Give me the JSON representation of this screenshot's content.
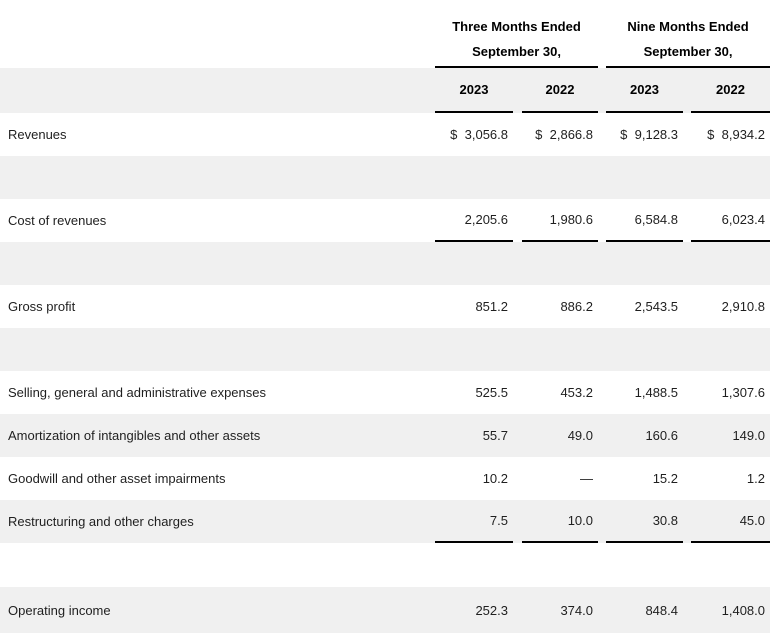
{
  "colors": {
    "stripe": "#f0f0f0",
    "row-white": "#ffffff",
    "rule": "#000000",
    "text": "#1f1f1f",
    "heading": "#000000"
  },
  "table": {
    "col_groups": [
      {
        "line1": "Three Months Ended",
        "line2": "September 30,"
      },
      {
        "line1": "Nine Months Ended",
        "line2": "September 30,"
      }
    ],
    "year_headers": [
      "2023",
      "2022",
      "2023",
      "2022"
    ],
    "rows": [
      {
        "label": "Revenues",
        "values": [
          "$  3,056.8",
          "$  2,866.8",
          "$  9,128.3",
          "$  8,934.2"
        ]
      },
      {
        "label": "Cost of revenues",
        "values": [
          "2,205.6",
          "1,980.6",
          "6,584.8",
          "6,023.4"
        ]
      },
      {
        "label": "Gross profit",
        "values": [
          "851.2",
          "886.2",
          "2,543.5",
          "2,910.8"
        ]
      },
      {
        "label": "Selling, general and administrative expenses",
        "values": [
          "525.5",
          "453.2",
          "1,488.5",
          "1,307.6"
        ]
      },
      {
        "label": "Amortization of intangibles and other assets",
        "values": [
          "55.7",
          "49.0",
          "160.6",
          "149.0"
        ]
      },
      {
        "label": "Goodwill and other asset impairments",
        "values": [
          "10.2",
          "—",
          "15.2",
          "1.2"
        ]
      },
      {
        "label": "Restructuring and other charges",
        "values": [
          "7.5",
          "10.0",
          "30.8",
          "45.0"
        ]
      },
      {
        "label": "Operating income",
        "values": [
          "252.3",
          "374.0",
          "848.4",
          "1,408.0"
        ]
      }
    ]
  }
}
